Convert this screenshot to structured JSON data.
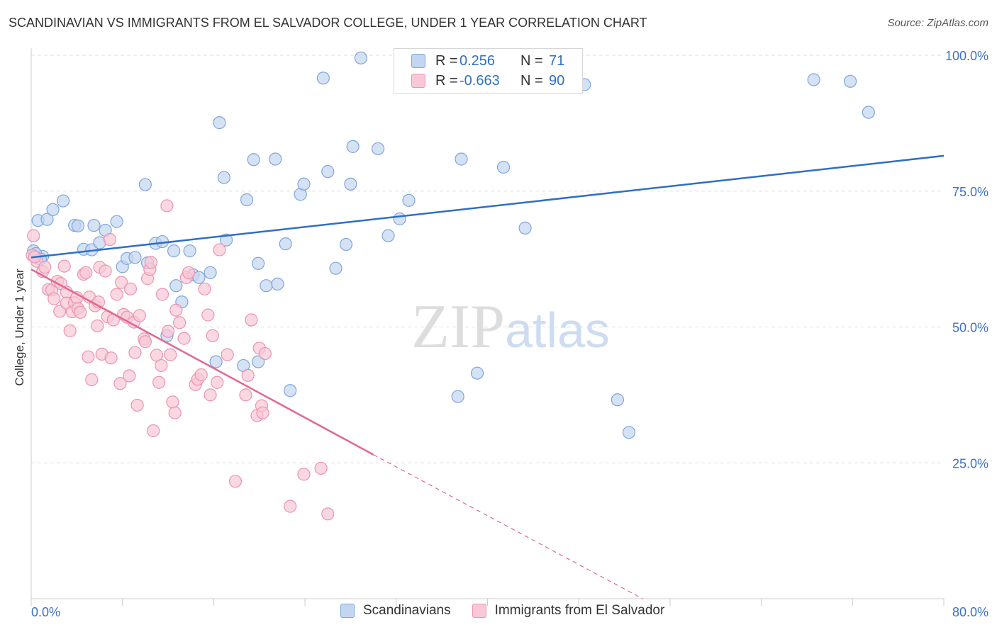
{
  "header": {
    "title": "SCANDINAVIAN VS IMMIGRANTS FROM EL SALVADOR COLLEGE, UNDER 1 YEAR CORRELATION CHART",
    "source": "Source: ZipAtlas.com"
  },
  "legend": {
    "rows": [
      {
        "r_label": "R =",
        "r_value": "0.256",
        "n_label": "N =",
        "n_value": "71"
      },
      {
        "r_label": "R =",
        "r_value": "-0.663",
        "n_label": "N =",
        "n_value": "90"
      }
    ],
    "bottom": [
      "Scandinavians",
      "Immigrants from El Salvador"
    ]
  },
  "colors": {
    "blue_fill": "#c3d6f0",
    "blue_stroke": "#7ea6dc",
    "blue_line": "#2f6fc4",
    "pink_fill": "#f8c8d6",
    "pink_stroke": "#ec93b0",
    "pink_line": "#e36790",
    "axis_text": "#3d72c4",
    "grid": "#dcdcdc"
  },
  "chart_data": {
    "type": "scatter",
    "xlabel": "",
    "ylabel": "College, Under 1 year",
    "xlim": [
      0,
      80
    ],
    "ylim": [
      0,
      100
    ],
    "x_tick_labels": [
      "0.0%",
      "80.0%"
    ],
    "y_tick_labels": [
      "25.0%",
      "50.0%",
      "75.0%",
      "100.0%"
    ],
    "y_ticks": [
      25,
      50,
      75,
      100
    ],
    "grid": true,
    "watermark": "ZIPatlas",
    "series": [
      {
        "name": "Scandinavians",
        "trend": {
          "x0": 0,
          "y0": 62.8,
          "x1": 80,
          "y1": 81.5
        },
        "points": [
          [
            1.0,
            63
          ],
          [
            0.6,
            69.6
          ],
          [
            1.4,
            69.8
          ],
          [
            1.9,
            71.6
          ],
          [
            2.8,
            73.2
          ],
          [
            3.8,
            68.7
          ],
          [
            4.1,
            68.6
          ],
          [
            4.6,
            64.3
          ],
          [
            5.3,
            64.2
          ],
          [
            5.5,
            68.7
          ],
          [
            6.0,
            65.5
          ],
          [
            6.5,
            67.8
          ],
          [
            7.5,
            69.4
          ],
          [
            8.0,
            61.1
          ],
          [
            8.4,
            62.6
          ],
          [
            9.1,
            62.8
          ],
          [
            10.2,
            61.8
          ],
          [
            10.0,
            76.2
          ],
          [
            10.9,
            65.4
          ],
          [
            11.5,
            65.7
          ],
          [
            11.9,
            48.4
          ],
          [
            12.5,
            64.0
          ],
          [
            12.7,
            57.6
          ],
          [
            13.2,
            54.6
          ],
          [
            13.9,
            64.0
          ],
          [
            14.2,
            59.6
          ],
          [
            14.7,
            59.1
          ],
          [
            15.7,
            60.0
          ],
          [
            16.2,
            43.6
          ],
          [
            16.5,
            87.6
          ],
          [
            16.9,
            77.5
          ],
          [
            17.1,
            66.0
          ],
          [
            18.6,
            42.9
          ],
          [
            18.9,
            73.4
          ],
          [
            19.5,
            80.8
          ],
          [
            19.9,
            61.7
          ],
          [
            19.9,
            43.6
          ],
          [
            20.6,
            57.6
          ],
          [
            21.6,
            57.9
          ],
          [
            21.4,
            80.9
          ],
          [
            22.3,
            65.3
          ],
          [
            22.7,
            38.3
          ],
          [
            23.6,
            74.4
          ],
          [
            23.9,
            76.3
          ],
          [
            25.6,
            95.8
          ],
          [
            26.0,
            78.6
          ],
          [
            26.7,
            60.8
          ],
          [
            27.6,
            65.2
          ],
          [
            28.0,
            76.3
          ],
          [
            28.2,
            83.2
          ],
          [
            28.9,
            99.5
          ],
          [
            30.4,
            82.8
          ],
          [
            31.3,
            66.8
          ],
          [
            32.3,
            69.9
          ],
          [
            33.1,
            73.3
          ],
          [
            35.0,
            94.7
          ],
          [
            37.4,
            37.2
          ],
          [
            37.7,
            80.9
          ],
          [
            39.1,
            41.5
          ],
          [
            41.4,
            79.4
          ],
          [
            43.3,
            68.2
          ],
          [
            44.8,
            99.6
          ],
          [
            48.5,
            94.6
          ],
          [
            51.4,
            36.6
          ],
          [
            52.4,
            30.6
          ],
          [
            68.6,
            95.5
          ],
          [
            71.8,
            95.2
          ],
          [
            73.4,
            89.5
          ],
          [
            0.2,
            64.0
          ],
          [
            0.4,
            63.5
          ],
          [
            0.8,
            62.5
          ]
        ]
      },
      {
        "name": "Immigrants from El Salvador",
        "trend": {
          "x0": 0,
          "y0": 60.6,
          "x1": 30,
          "y1": 26.5,
          "dash_x1": 53.6,
          "dash_y1": 0
        },
        "points": [
          [
            0.2,
            66.8
          ],
          [
            0.5,
            62.1
          ],
          [
            1.0,
            60.2
          ],
          [
            1.2,
            61.0
          ],
          [
            1.5,
            56.9
          ],
          [
            1.8,
            56.8
          ],
          [
            2.0,
            55.2
          ],
          [
            2.3,
            58.4
          ],
          [
            2.5,
            52.9
          ],
          [
            2.6,
            58.0
          ],
          [
            2.9,
            61.2
          ],
          [
            3.1,
            56.4
          ],
          [
            3.1,
            54.4
          ],
          [
            3.4,
            49.3
          ],
          [
            3.6,
            52.8
          ],
          [
            3.8,
            54.5
          ],
          [
            4.0,
            55.4
          ],
          [
            4.1,
            53.4
          ],
          [
            4.3,
            52.7
          ],
          [
            4.6,
            59.7
          ],
          [
            4.8,
            60.0
          ],
          [
            5.0,
            44.5
          ],
          [
            5.1,
            55.5
          ],
          [
            5.3,
            40.3
          ],
          [
            5.6,
            53.9
          ],
          [
            5.8,
            50.2
          ],
          [
            5.9,
            54.6
          ],
          [
            6.0,
            61.0
          ],
          [
            6.2,
            45.0
          ],
          [
            6.5,
            60.3
          ],
          [
            6.7,
            51.9
          ],
          [
            6.9,
            66.1
          ],
          [
            7.0,
            44.3
          ],
          [
            7.2,
            51.3
          ],
          [
            7.5,
            56.0
          ],
          [
            7.8,
            39.6
          ],
          [
            7.9,
            58.2
          ],
          [
            8.1,
            52.3
          ],
          [
            8.4,
            51.8
          ],
          [
            8.6,
            41.0
          ],
          [
            8.7,
            57.0
          ],
          [
            9.0,
            50.9
          ],
          [
            9.1,
            45.3
          ],
          [
            9.3,
            35.6
          ],
          [
            9.5,
            52.1
          ],
          [
            9.9,
            47.8
          ],
          [
            10.0,
            47.3
          ],
          [
            10.2,
            58.9
          ],
          [
            10.4,
            60.6
          ],
          [
            10.5,
            61.9
          ],
          [
            10.7,
            30.9
          ],
          [
            11.0,
            44.8
          ],
          [
            11.2,
            39.8
          ],
          [
            11.4,
            42.9
          ],
          [
            11.5,
            56.0
          ],
          [
            11.9,
            72.3
          ],
          [
            12.0,
            49.2
          ],
          [
            12.2,
            44.9
          ],
          [
            12.4,
            36.2
          ],
          [
            12.6,
            34.2
          ],
          [
            12.7,
            53.1
          ],
          [
            13.0,
            50.8
          ],
          [
            13.4,
            47.9
          ],
          [
            13.6,
            59.1
          ],
          [
            13.8,
            60.0
          ],
          [
            14.4,
            39.4
          ],
          [
            14.6,
            40.4
          ],
          [
            14.9,
            41.2
          ],
          [
            15.2,
            57.0
          ],
          [
            15.5,
            52.2
          ],
          [
            15.7,
            37.5
          ],
          [
            15.9,
            48.4
          ],
          [
            16.3,
            39.8
          ],
          [
            16.5,
            64.2
          ],
          [
            17.2,
            44.9
          ],
          [
            17.9,
            21.6
          ],
          [
            18.8,
            37.5
          ],
          [
            19.0,
            41.1
          ],
          [
            19.3,
            51.3
          ],
          [
            19.8,
            33.7
          ],
          [
            20.0,
            46.1
          ],
          [
            20.2,
            35.5
          ],
          [
            20.5,
            45.1
          ],
          [
            20.3,
            34.2
          ],
          [
            22.7,
            17.0
          ],
          [
            23.9,
            22.9
          ],
          [
            25.4,
            24.0
          ],
          [
            26.0,
            15.6
          ],
          [
            0.1,
            63.2
          ],
          [
            0.3,
            62.9
          ]
        ]
      }
    ]
  }
}
